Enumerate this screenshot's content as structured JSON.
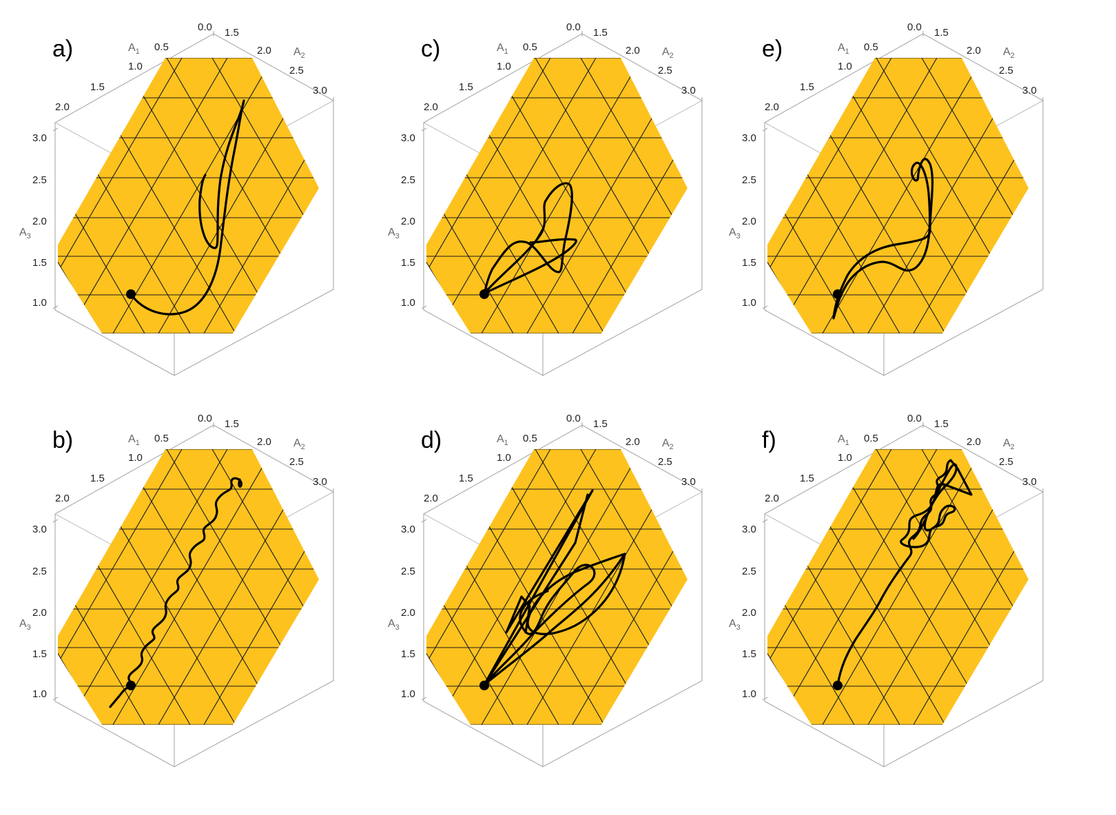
{
  "figure": {
    "colors": {
      "plane": "#FDC21E",
      "grid": "#1a1a1a",
      "trajectory": "#000000",
      "box": "#a8a8a8"
    },
    "panels": [
      {
        "id": "a",
        "label": "a)",
        "axes": {
          "a1_name": "A",
          "a1_sub": "1",
          "a1_ticks": [
            "0.5",
            "1.0",
            "1.5",
            "2.0"
          ],
          "a2_name": "A",
          "a2_sub": "2",
          "a2_ticks": [
            "1.5",
            "2.0",
            "2.5",
            "3.0"
          ],
          "a3_name": "A",
          "a3_sub": "3",
          "a3_ticks": [
            "3.0",
            "2.5",
            "2.0",
            "1.5",
            "1.0"
          ],
          "origin_tick": "0.0"
        },
        "start_marker": "filled-circle",
        "trajectory_style": "single smooth curve rising to upper right, with one narrow loop"
      },
      {
        "id": "b",
        "label": "b)",
        "axes": {
          "a1_name": "A",
          "a1_sub": "1",
          "a1_ticks": [
            "0.5",
            "1.0",
            "1.5",
            "2.0"
          ],
          "a2_name": "A",
          "a2_sub": "2",
          "a2_ticks": [
            "1.5",
            "2.0",
            "2.5",
            "3.0"
          ],
          "a3_name": "A",
          "a3_sub": "3",
          "a3_ticks": [
            "3.0",
            "2.5",
            "2.0",
            "1.5",
            "1.0"
          ],
          "origin_tick": "0.0"
        },
        "start_marker": "filled-circle",
        "trajectory_style": "oscillating line along the diagonal"
      },
      {
        "id": "c",
        "label": "c)",
        "axes": {
          "a1_name": "A",
          "a1_sub": "1",
          "a1_ticks": [
            "0.5",
            "1.0",
            "1.5",
            "2.0"
          ],
          "a2_name": "A",
          "a2_sub": "2",
          "a2_ticks": [
            "1.5",
            "2.0",
            "2.5",
            "3.0"
          ],
          "a3_name": "A",
          "a3_sub": "3",
          "a3_ticks": [
            "3.0",
            "2.5",
            "2.0",
            "1.5",
            "1.0"
          ],
          "origin_tick": "0.0"
        },
        "start_marker": "filled-circle",
        "trajectory_style": "closed loop forming a triangle-like knot"
      },
      {
        "id": "d",
        "label": "d)",
        "axes": {
          "a1_name": "A",
          "a1_sub": "1",
          "a1_ticks": [
            "0.5",
            "1.0",
            "1.5",
            "2.0"
          ],
          "a2_name": "A",
          "a2_sub": "2",
          "a2_ticks": [
            "1.5",
            "2.0",
            "2.5",
            "3.0"
          ],
          "a3_name": "A",
          "a3_sub": "3",
          "a3_ticks": [
            "3.0",
            "2.5",
            "2.0",
            "1.5",
            "1.0"
          ],
          "origin_tick": "0.0"
        },
        "start_marker": "filled-circle",
        "trajectory_style": "many overlapping loops between two extreme points"
      },
      {
        "id": "e",
        "label": "e)",
        "axes": {
          "a1_name": "A",
          "a1_sub": "1",
          "a1_ticks": [
            "0.5",
            "1.0",
            "1.5",
            "2.0"
          ],
          "a2_name": "A",
          "a2_sub": "2",
          "a2_ticks": [
            "1.5",
            "2.0",
            "2.5",
            "3.0"
          ],
          "a3_name": "A",
          "a3_sub": "3",
          "a3_ticks": [
            "3.0",
            "2.5",
            "2.0",
            "1.5",
            "1.0"
          ],
          "origin_tick": "0.0"
        },
        "start_marker": "filled-circle",
        "trajectory_style": "two-strand curve with a loop near the top"
      },
      {
        "id": "f",
        "label": "f)",
        "axes": {
          "a1_name": "A",
          "a1_sub": "1",
          "a1_ticks": [
            "0.5",
            "1.0",
            "1.5",
            "2.0"
          ],
          "a2_name": "A",
          "a2_sub": "2",
          "a2_ticks": [
            "1.5",
            "2.0",
            "2.5",
            "3.0"
          ],
          "a3_name": "A",
          "a3_sub": "3",
          "a3_ticks": [
            "3.0",
            "2.5",
            "2.0",
            "1.5",
            "1.0"
          ],
          "origin_tick": "0.0"
        },
        "start_marker": "filled-circle",
        "trajectory_style": "curve rising to a chaotic tangle near the upper right"
      }
    ]
  }
}
